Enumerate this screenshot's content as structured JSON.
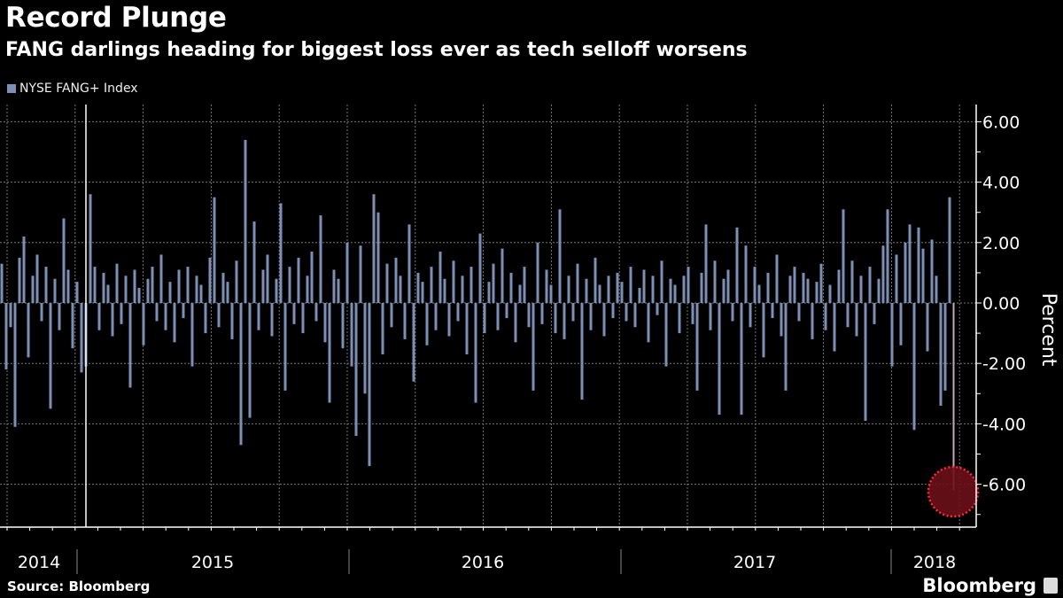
{
  "title": "Record Plunge",
  "subtitle": "FANG darlings heading for biggest loss ever as tech selloff worsens",
  "source": "Source: Bloomberg",
  "brand": "Bloomberg",
  "chart_data": {
    "type": "bar",
    "title": "Record Plunge",
    "subtitle": "FANG darlings heading for biggest loss ever as tech selloff worsens",
    "ylabel": "Percent",
    "xlabel": "",
    "ylim": [
      -7.4,
      6.6
    ],
    "yticks": [
      "6.00",
      "4.00",
      "2.00",
      "0.00",
      "-2.00",
      "-4.00",
      "-6.00"
    ],
    "ytick_values": [
      6,
      4,
      2,
      0,
      -2,
      -4,
      -6
    ],
    "xtick_labels": [
      "2014",
      "2015",
      "2016",
      "2017",
      "2018"
    ],
    "grid": true,
    "legend_position": "top-left",
    "series": [
      {
        "name": "NYSE FANG+ Index",
        "color": "#7b90b4",
        "values": [
          1.3,
          -2.2,
          -0.8,
          -4.1,
          1.5,
          2.2,
          -1.8,
          0.9,
          1.6,
          -0.6,
          1.2,
          -3.5,
          0.8,
          -0.9,
          2.8,
          1.1,
          -1.5,
          0.7,
          -2.3,
          -2.1,
          3.6,
          1.2,
          -0.9,
          1.0,
          0.6,
          -1.1,
          1.3,
          -0.7,
          0.9,
          -2.8,
          1.1,
          0.5,
          -1.4,
          0.8,
          1.2,
          -0.6,
          1.6,
          -0.9,
          0.7,
          -1.3,
          1.1,
          -0.5,
          1.2,
          -2.1,
          0.9,
          0.6,
          -1.0,
          1.5,
          3.5,
          -0.8,
          1.0,
          0.7,
          -1.2,
          1.4,
          -4.7,
          5.4,
          -3.8,
          2.7,
          -0.9,
          1.1,
          1.6,
          -1.1,
          0.8,
          3.3,
          -2.9,
          1.2,
          -0.7,
          1.5,
          -1.0,
          0.9,
          1.7,
          -0.6,
          2.9,
          -1.3,
          -3.3,
          1.1,
          0.8,
          -1.5,
          2.0,
          -2.1,
          -4.4,
          1.9,
          -3.0,
          -5.4,
          3.6,
          3.0,
          -1.7,
          1.3,
          -0.8,
          1.5,
          0.9,
          -1.2,
          2.6,
          -2.6,
          1.0,
          0.7,
          -1.4,
          1.2,
          -0.9,
          1.7,
          0.8,
          -1.1,
          1.4,
          -0.6,
          0.9,
          -1.7,
          1.2,
          -3.3,
          2.3,
          -1.0,
          0.7,
          1.3,
          -0.9,
          1.8,
          -0.5,
          1.0,
          -1.3,
          0.6,
          1.2,
          -0.8,
          -2.9,
          2.0,
          -0.7,
          1.1,
          0.6,
          -1.0,
          3.1,
          -1.2,
          0.9,
          -0.6,
          1.3,
          -3.2,
          0.8,
          -0.9,
          1.5,
          0.6,
          -1.1,
          0.9,
          -0.5,
          1.0,
          0.7,
          -0.6,
          1.2,
          -0.8,
          0.5,
          1.1,
          -1.3,
          0.9,
          -0.4,
          1.4,
          -2.1,
          0.8,
          0.6,
          -1.0,
          0.9,
          1.2,
          -0.7,
          -2.9,
          1.0,
          2.6,
          -0.9,
          1.4,
          -3.7,
          0.8,
          1.1,
          -0.6,
          2.5,
          -3.7,
          1.9,
          -0.8,
          1.2,
          0.6,
          -1.8,
          1.0,
          -0.5,
          1.6,
          -1.1,
          -2.9,
          0.9,
          1.2,
          -0.6,
          1.0,
          0.8,
          -1.2,
          0.7,
          1.3,
          -0.9,
          0.6,
          -1.6,
          1.1,
          3.1,
          -0.8,
          1.4,
          -1.1,
          0.9,
          -3.9,
          1.2,
          -0.7,
          0.8,
          1.9,
          3.1,
          -2.1,
          1.6,
          -1.4,
          2.0,
          2.6,
          -4.2,
          2.5,
          1.8,
          -1.6,
          2.1,
          0.9,
          -3.4,
          -2.9,
          3.5,
          -6.2
        ]
      }
    ],
    "annotation": {
      "type": "highlight-circle",
      "target": "last value",
      "color": "#6b0f1a",
      "border_color": "#ff2a3a"
    }
  }
}
